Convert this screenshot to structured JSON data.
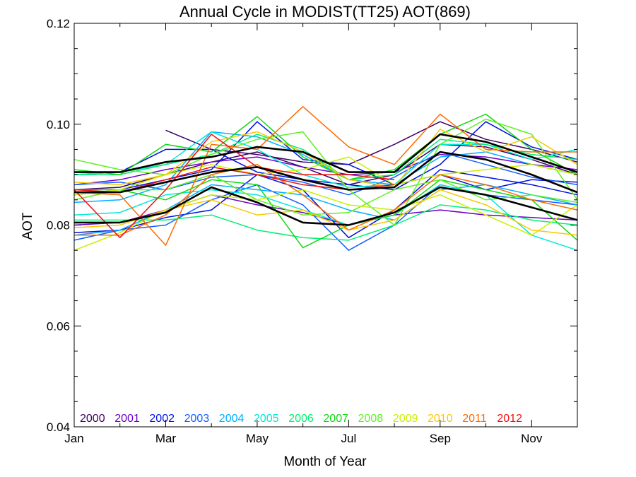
{
  "chart_data": {
    "type": "line",
    "title": "Annual Cycle in MODIST(TT25) AOT(869)",
    "xlabel": "Month of Year",
    "ylabel": "AOT",
    "xlim": [
      1,
      12
    ],
    "ylim": [
      0.04,
      0.12
    ],
    "x_ticks": [
      {
        "value": 1,
        "label": "Jan"
      },
      {
        "value": 3,
        "label": "Mar"
      },
      {
        "value": 5,
        "label": "May"
      },
      {
        "value": 7,
        "label": "Jul"
      },
      {
        "value": 9,
        "label": "Sep"
      },
      {
        "value": 11,
        "label": "Nov"
      }
    ],
    "y_ticks": [
      {
        "value": 0.04,
        "label": "0.04"
      },
      {
        "value": 0.06,
        "label": "0.06"
      },
      {
        "value": 0.08,
        "label": "0.08"
      },
      {
        "value": 0.1,
        "label": "0.10"
      },
      {
        "value": 0.12,
        "label": "0.12"
      }
    ],
    "x": [
      1,
      2,
      3,
      4,
      5,
      6,
      7,
      8,
      9,
      10,
      11,
      12
    ],
    "grid": false,
    "legend_position": "bottom-left",
    "series": [
      {
        "name": "2000",
        "color": "#3d0066",
        "lines": [
          [
            null,
            null,
            0.0988,
            0.095,
            0.094,
            0.0925,
            0.092,
            0.096,
            0.1005,
            0.097,
            0.095,
            0.0925
          ],
          [
            0.087,
            0.0875,
            0.09,
            0.0925,
            0.0945,
            0.0915,
            0.088,
            0.09,
            0.096,
            0.0955,
            0.093,
            0.09
          ]
        ]
      },
      {
        "name": "2001",
        "color": "#6a00c8",
        "lines": [
          [
            0.08,
            0.0805,
            0.083,
            0.086,
            0.084,
            0.0825,
            0.08,
            0.082,
            0.083,
            0.082,
            0.0815,
            0.081
          ],
          [
            0.088,
            0.089,
            0.091,
            0.0925,
            0.0935,
            0.0915,
            0.09,
            0.0905,
            0.094,
            0.0935,
            0.092,
            0.091
          ]
        ]
      },
      {
        "name": "2002",
        "color": "#0010e0",
        "lines": [
          [
            0.09,
            0.0905,
            0.095,
            0.095,
            0.0905,
            0.089,
            0.088,
            0.087,
            0.092,
            0.1005,
            0.0955,
            0.093
          ],
          [
            0.0785,
            0.079,
            0.0815,
            0.083,
            0.09,
            0.087,
            0.0775,
            0.083,
            0.091,
            0.0895,
            0.088,
            0.086
          ],
          [
            0.086,
            0.087,
            0.089,
            0.091,
            0.1005,
            0.093,
            0.092,
            0.088,
            0.09,
            0.087,
            0.089,
            0.0885
          ]
        ]
      },
      {
        "name": "2003",
        "color": "#1060ff",
        "lines": [
          [
            0.077,
            0.079,
            0.08,
            0.085,
            0.088,
            0.084,
            0.075,
            0.08,
            0.088,
            0.086,
            0.085,
            0.084
          ],
          [
            0.088,
            0.0885,
            0.087,
            0.0895,
            0.09,
            0.0885,
            0.086,
            0.0895,
            0.0945,
            0.092,
            0.0895,
            0.088
          ]
        ]
      },
      {
        "name": "2004",
        "color": "#00b0ff",
        "lines": [
          [
            0.0845,
            0.085,
            0.088,
            0.0985,
            0.0975,
            0.094,
            0.089,
            0.088,
            0.0935,
            0.0945,
            0.092,
            0.09
          ],
          [
            0.078,
            0.079,
            0.083,
            0.088,
            0.087,
            0.086,
            0.083,
            0.081,
            0.087,
            0.088,
            0.086,
            0.084
          ]
        ]
      },
      {
        "name": "2005",
        "color": "#00e8d8",
        "lines": [
          [
            0.09,
            0.0905,
            0.092,
            0.0985,
            0.095,
            0.09,
            0.0875,
            0.088,
            0.096,
            0.096,
            0.093,
            0.095
          ],
          [
            0.082,
            0.0825,
            0.086,
            0.087,
            0.086,
            0.083,
            0.08,
            0.082,
            0.088,
            0.086,
            0.078,
            0.075
          ]
        ]
      },
      {
        "name": "2006",
        "color": "#00f070",
        "lines": [
          [
            0.09,
            0.09,
            0.092,
            0.094,
            0.098,
            0.095,
            0.089,
            0.09,
            0.097,
            0.096,
            0.094,
            0.093
          ],
          [
            0.081,
            0.081,
            0.081,
            0.082,
            0.079,
            0.0775,
            0.077,
            0.08,
            0.084,
            0.083,
            0.081,
            0.08
          ]
        ]
      },
      {
        "name": "2007",
        "color": "#10d810",
        "lines": [
          [
            0.091,
            0.09,
            0.096,
            0.0945,
            0.1015,
            0.0935,
            0.089,
            0.091,
            0.098,
            0.102,
            0.095,
            0.09
          ],
          [
            0.087,
            0.087,
            0.085,
            0.089,
            0.088,
            0.0755,
            0.08,
            0.082,
            0.089,
            0.087,
            0.085,
            0.077
          ]
        ]
      },
      {
        "name": "2008",
        "color": "#60f020",
        "lines": [
          [
            0.093,
            0.091,
            0.09,
            0.094,
            0.097,
            0.0985,
            0.087,
            0.08,
            0.096,
            0.101,
            0.098,
            0.085
          ],
          [
            0.085,
            0.087,
            0.087,
            0.09,
            0.085,
            0.082,
            0.0825,
            0.087,
            0.089,
            0.085,
            0.086,
            0.0845
          ]
        ]
      },
      {
        "name": "2009",
        "color": "#c8f000",
        "lines": [
          [
            0.075,
            0.0785,
            0.083,
            0.086,
            0.085,
            0.087,
            0.084,
            0.083,
            0.086,
            0.082,
            0.078,
            0.084
          ],
          [
            0.086,
            0.087,
            0.09,
            0.092,
            0.09,
            0.091,
            0.0935,
            0.088,
            0.09,
            0.091,
            0.092,
            0.09
          ]
        ]
      },
      {
        "name": "2010",
        "color": "#f8c800",
        "lines": [
          [
            0.0885,
            0.088,
            0.09,
            0.0965,
            0.0985,
            0.0945,
            0.089,
            0.0875,
            0.099,
            0.0945,
            0.0975,
            0.092
          ],
          [
            0.0795,
            0.08,
            0.083,
            0.085,
            0.082,
            0.083,
            0.079,
            0.081,
            0.087,
            0.084,
            0.079,
            0.078
          ]
        ]
      },
      {
        "name": "2011",
        "color": "#ff6a00",
        "lines": [
          [
            0.0865,
            0.086,
            0.076,
            0.096,
            0.095,
            0.1035,
            0.0955,
            0.092,
            0.102,
            0.095,
            0.0945,
            0.0945
          ],
          [
            0.078,
            0.078,
            0.082,
            0.09,
            0.092,
            0.086,
            0.079,
            0.083,
            0.09,
            0.088,
            0.085,
            0.083
          ]
        ]
      },
      {
        "name": "2012",
        "color": "#f01010",
        "lines": [
          [
            0.087,
            0.0775,
            0.087,
            0.098,
            0.0915,
            0.09,
            0.09,
            0.089,
            null,
            null,
            null,
            null
          ],
          [
            0.087,
            0.0865,
            0.089,
            0.0915,
            0.09,
            0.088,
            0.087,
            0.088,
            null,
            null,
            null,
            null
          ]
        ]
      }
    ],
    "reference_lines": {
      "color": "#000000",
      "lines": [
        [
          0.0905,
          0.0905,
          0.0925,
          0.0935,
          0.0955,
          0.0945,
          0.0905,
          0.0905,
          0.098,
          0.0965,
          0.0935,
          0.0905
        ],
        [
          0.0865,
          0.0865,
          0.0885,
          0.0905,
          0.0915,
          0.089,
          0.087,
          0.0875,
          0.0945,
          0.093,
          0.09,
          0.0865
        ],
        [
          0.0805,
          0.0805,
          0.0825,
          0.0875,
          0.0845,
          0.0805,
          0.08,
          0.0825,
          0.0875,
          0.086,
          0.0835,
          0.081
        ]
      ]
    }
  }
}
